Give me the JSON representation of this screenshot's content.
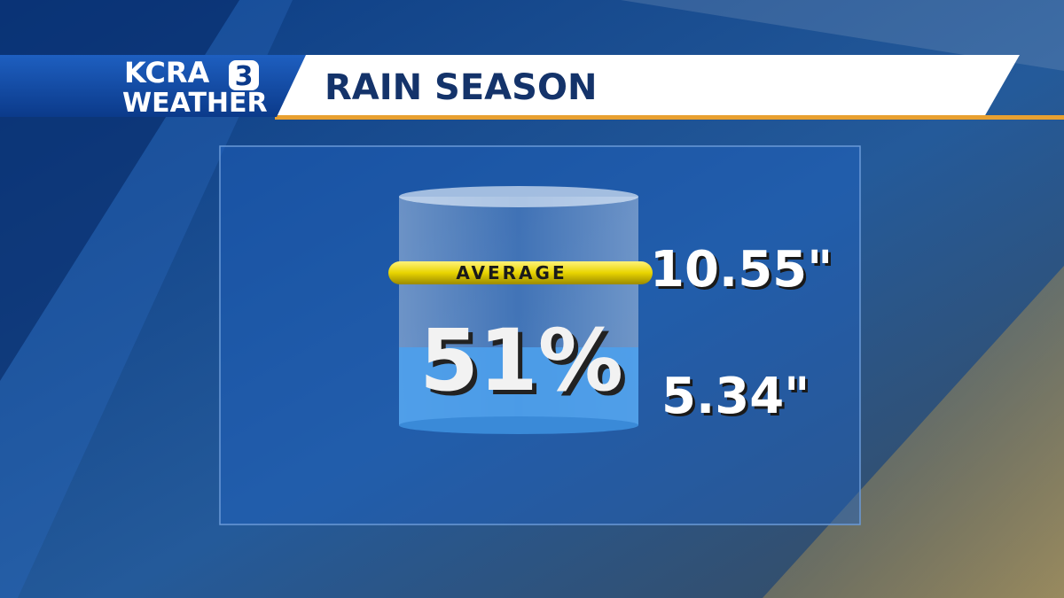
{
  "header": {
    "logo": {
      "line1": "KCRA",
      "channel": "3",
      "line2": "WEATHER"
    },
    "title": "RAIN SEASON"
  },
  "gauge": {
    "average_label": "AVERAGE",
    "average": "10.55\"",
    "percent": "51%",
    "current": "5.34\""
  }
}
